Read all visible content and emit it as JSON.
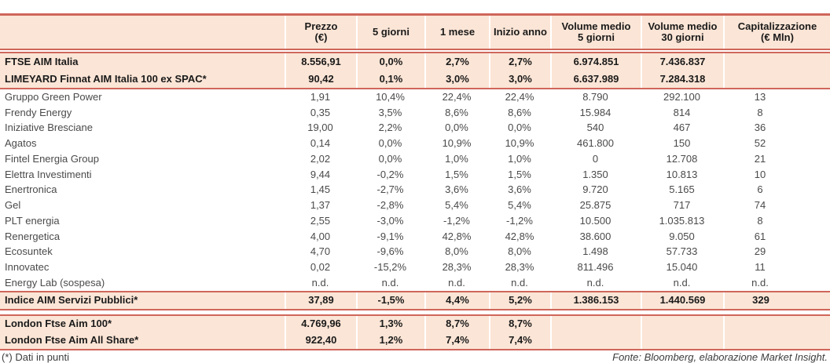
{
  "colors": {
    "accent_border": "#cf665a",
    "highlight_bg": "#fbe5d6"
  },
  "table": {
    "columns": [
      {
        "key": "name",
        "lines": []
      },
      {
        "key": "prezzo",
        "lines": [
          "Prezzo",
          "(€)"
        ]
      },
      {
        "key": "d5",
        "lines": [
          "5 giorni"
        ]
      },
      {
        "key": "m1",
        "lines": [
          "1 mese"
        ]
      },
      {
        "key": "ytd",
        "lines": [
          "Inizio anno"
        ]
      },
      {
        "key": "vol5",
        "lines": [
          "Volume medio",
          "5 giorni"
        ]
      },
      {
        "key": "vol30",
        "lines": [
          "Volume medio",
          "30 giorni"
        ]
      },
      {
        "key": "cap",
        "lines": [
          "Capitalizzazione",
          "(€ Mln)"
        ]
      }
    ],
    "index_rows": [
      {
        "name": "FTSE AIM Italia",
        "values": [
          "8.556,91",
          "0,0%",
          "2,7%",
          "2,7%",
          "6.974.851",
          "7.436.837",
          ""
        ]
      },
      {
        "name": "LIMEYARD Finnat AIM Italia 100 ex SPAC*",
        "values": [
          "90,42",
          "0,1%",
          "3,0%",
          "3,0%",
          "6.637.989",
          "7.284.318",
          ""
        ]
      }
    ],
    "companies": [
      {
        "name": "Gruppo Green Power",
        "values": [
          "1,91",
          "10,4%",
          "22,4%",
          "22,4%",
          "8.790",
          "292.100",
          "13"
        ]
      },
      {
        "name": "Frendy Energy",
        "values": [
          "0,35",
          "3,5%",
          "8,6%",
          "8,6%",
          "15.984",
          "814",
          "8"
        ]
      },
      {
        "name": "Iniziative Bresciane",
        "values": [
          "19,00",
          "2,2%",
          "0,0%",
          "0,0%",
          "540",
          "467",
          "36"
        ]
      },
      {
        "name": "Agatos",
        "values": [
          "0,14",
          "0,0%",
          "10,9%",
          "10,9%",
          "461.800",
          "150",
          "52"
        ]
      },
      {
        "name": "Fintel Energia Group",
        "values": [
          "2,02",
          "0,0%",
          "1,0%",
          "1,0%",
          "0",
          "12.708",
          "21"
        ]
      },
      {
        "name": "Elettra Investimenti",
        "values": [
          "9,44",
          "-0,2%",
          "1,5%",
          "1,5%",
          "1.350",
          "10.813",
          "10"
        ]
      },
      {
        "name": "Enertronica",
        "values": [
          "1,45",
          "-2,7%",
          "3,6%",
          "3,6%",
          "9.720",
          "5.165",
          "6"
        ]
      },
      {
        "name": "Gel",
        "values": [
          "1,37",
          "-2,8%",
          "5,4%",
          "5,4%",
          "25.875",
          "717",
          "74"
        ]
      },
      {
        "name": "PLT energia",
        "values": [
          "2,55",
          "-3,0%",
          "-1,2%",
          "-1,2%",
          "10.500",
          "1.035.813",
          "8"
        ]
      },
      {
        "name": "Renergetica",
        "values": [
          "4,00",
          "-9,1%",
          "42,8%",
          "42,8%",
          "38.600",
          "9.050",
          "61"
        ]
      },
      {
        "name": "Ecosuntek",
        "values": [
          "4,70",
          "-9,6%",
          "8,0%",
          "8,0%",
          "1.498",
          "57.733",
          "29"
        ]
      },
      {
        "name": "Innovatec",
        "values": [
          "0,02",
          "-15,2%",
          "28,3%",
          "28,3%",
          "811.496",
          "15.040",
          "11"
        ]
      },
      {
        "name": "Energy Lab (sospesa)",
        "values": [
          "n.d.",
          "n.d.",
          "n.d.",
          "n.d.",
          "n.d.",
          "n.d.",
          "n.d."
        ]
      }
    ],
    "public_services_rows": [
      {
        "name": "Indice AIM Servizi Pubblici*",
        "values": [
          "37,89",
          "-1,5%",
          "4,4%",
          "5,2%",
          "1.386.153",
          "1.440.569",
          "329"
        ]
      }
    ],
    "london_rows": [
      {
        "name": "London Ftse Aim 100*",
        "values": [
          "4.769,96",
          "1,3%",
          "8,7%",
          "8,7%",
          "",
          "",
          ""
        ]
      },
      {
        "name": "London Ftse Aim All Share*",
        "values": [
          "922,40",
          "1,2%",
          "7,4%",
          "7,4%",
          "",
          "",
          ""
        ]
      }
    ]
  },
  "footer": {
    "note": "(*) Dati in punti",
    "source": "Fonte: Bloomberg, elaborazione Market Insight."
  }
}
